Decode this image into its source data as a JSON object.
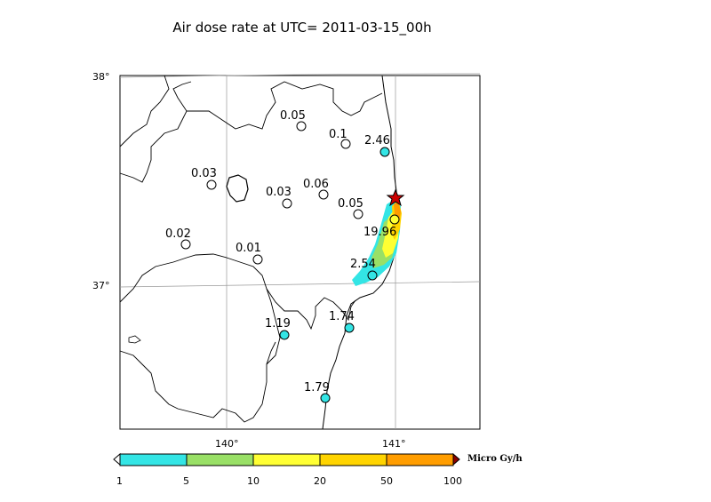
{
  "title": "Air dose rate at UTC= 2011-03-15_00h",
  "axes": {
    "lat_ticks": [
      "38°",
      "37°"
    ],
    "lon_ticks": [
      "140°",
      "141°"
    ]
  },
  "colorbar": {
    "ticks": [
      "1",
      "5",
      "10",
      "20",
      "50",
      "100"
    ],
    "unit": "Micro Gy/h",
    "colors": [
      "#33e5e5",
      "#99e066",
      "#ffff33",
      "#ffd400",
      "#ff9d00",
      "#f26c00"
    ],
    "under_color": "#ffffff",
    "over_color": "#8b0000"
  },
  "source_marker": {
    "icon": "star-icon",
    "color": "#cc0000"
  },
  "stations": [
    {
      "value": "0.05",
      "fill": "#ffffff"
    },
    {
      "value": "0.1",
      "fill": "#ffffff"
    },
    {
      "value": "2.46",
      "fill": "#33e5e5"
    },
    {
      "value": "0.03",
      "fill": "#ffffff"
    },
    {
      "value": "0.03",
      "fill": "#ffffff"
    },
    {
      "value": "0.06",
      "fill": "#ffffff"
    },
    {
      "value": "0.05",
      "fill": "#ffffff"
    },
    {
      "value": "19.96",
      "fill": "#ffff33"
    },
    {
      "value": "0.02",
      "fill": "#ffffff"
    },
    {
      "value": "0.01",
      "fill": "#ffffff"
    },
    {
      "value": "2.54",
      "fill": "#33e5e5"
    },
    {
      "value": "1.19",
      "fill": "#33e5e5"
    },
    {
      "value": "1.74",
      "fill": "#33e5e5"
    },
    {
      "value": "1.79",
      "fill": "#33e5e5"
    }
  ]
}
